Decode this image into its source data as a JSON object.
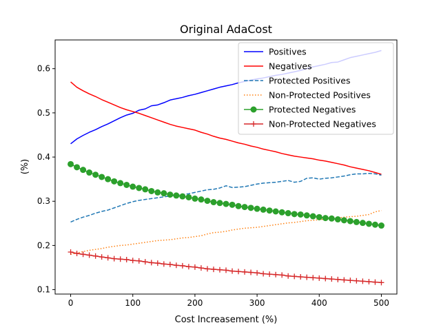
{
  "chart_data": {
    "type": "line",
    "title": "Original AdaCost",
    "xlabel": "Cost Increasement (%)",
    "ylabel": "(%)",
    "xlim": [
      -25,
      525
    ],
    "ylim": [
      0.09,
      0.665
    ],
    "x_ticks": [
      0,
      100,
      200,
      300,
      400,
      500
    ],
    "y_ticks": [
      0.1,
      0.2,
      0.3,
      0.4,
      0.5,
      0.6
    ],
    "x_tick_labels": [
      "0",
      "100",
      "200",
      "300",
      "400",
      "500"
    ],
    "y_tick_labels": [
      "0.1",
      "0.2",
      "0.3",
      "0.4",
      "0.5",
      "0.6"
    ],
    "grid": false,
    "legend_position": "top-right",
    "x": [
      0,
      10,
      20,
      30,
      40,
      50,
      60,
      70,
      80,
      90,
      100,
      110,
      120,
      130,
      140,
      150,
      160,
      170,
      180,
      190,
      200,
      210,
      220,
      230,
      240,
      250,
      260,
      270,
      280,
      290,
      300,
      310,
      320,
      330,
      340,
      350,
      360,
      370,
      380,
      390,
      400,
      410,
      420,
      430,
      440,
      450,
      460,
      470,
      480,
      490,
      500
    ],
    "series": [
      {
        "name": "Positives",
        "color": "#0000ff",
        "style": "solid",
        "marker": "none",
        "values": [
          0.43,
          0.441,
          0.449,
          0.456,
          0.462,
          0.469,
          0.475,
          0.482,
          0.489,
          0.495,
          0.499,
          0.506,
          0.509,
          0.516,
          0.518,
          0.523,
          0.529,
          0.532,
          0.535,
          0.539,
          0.542,
          0.546,
          0.55,
          0.554,
          0.558,
          0.561,
          0.564,
          0.568,
          0.571,
          0.574,
          0.577,
          0.579,
          0.582,
          0.585,
          0.587,
          0.59,
          0.593,
          0.596,
          0.6,
          0.604,
          0.607,
          0.61,
          0.614,
          0.615,
          0.62,
          0.625,
          0.628,
          0.631,
          0.634,
          0.637,
          0.641
        ]
      },
      {
        "name": "Negatives",
        "color": "#ff0000",
        "style": "solid",
        "marker": "none",
        "values": [
          0.57,
          0.558,
          0.55,
          0.543,
          0.537,
          0.53,
          0.524,
          0.518,
          0.512,
          0.507,
          0.503,
          0.499,
          0.494,
          0.489,
          0.484,
          0.479,
          0.474,
          0.47,
          0.467,
          0.464,
          0.461,
          0.456,
          0.452,
          0.447,
          0.443,
          0.44,
          0.436,
          0.432,
          0.429,
          0.425,
          0.422,
          0.418,
          0.415,
          0.412,
          0.408,
          0.405,
          0.402,
          0.4,
          0.398,
          0.396,
          0.393,
          0.391,
          0.388,
          0.385,
          0.382,
          0.378,
          0.375,
          0.372,
          0.369,
          0.365,
          0.361
        ]
      },
      {
        "name": "Protected Positives",
        "color": "#1f77b4",
        "style": "dashed",
        "marker": "none",
        "values": [
          0.253,
          0.259,
          0.264,
          0.268,
          0.273,
          0.277,
          0.28,
          0.285,
          0.29,
          0.295,
          0.299,
          0.302,
          0.304,
          0.306,
          0.308,
          0.31,
          0.312,
          0.314,
          0.315,
          0.317,
          0.32,
          0.323,
          0.326,
          0.327,
          0.33,
          0.335,
          0.331,
          0.332,
          0.333,
          0.336,
          0.339,
          0.341,
          0.342,
          0.343,
          0.345,
          0.347,
          0.343,
          0.345,
          0.352,
          0.353,
          0.35,
          0.352,
          0.353,
          0.355,
          0.357,
          0.36,
          0.362,
          0.362,
          0.363,
          0.362,
          0.359
        ]
      },
      {
        "name": "Non-Protected Positives",
        "color": "#ff7f0e",
        "style": "dotted",
        "marker": "none",
        "values": [
          0.18,
          0.183,
          0.186,
          0.189,
          0.191,
          0.193,
          0.196,
          0.198,
          0.2,
          0.201,
          0.203,
          0.205,
          0.207,
          0.209,
          0.211,
          0.212,
          0.213,
          0.215,
          0.217,
          0.218,
          0.22,
          0.222,
          0.226,
          0.229,
          0.23,
          0.232,
          0.235,
          0.237,
          0.239,
          0.24,
          0.241,
          0.243,
          0.245,
          0.247,
          0.249,
          0.251,
          0.252,
          0.254,
          0.256,
          0.257,
          0.258,
          0.26,
          0.261,
          0.262,
          0.264,
          0.265,
          0.266,
          0.268,
          0.27,
          0.276,
          0.279
        ]
      },
      {
        "name": "Protected Negatives",
        "color": "#2ca02c",
        "style": "solid",
        "marker": "circle",
        "values": [
          0.384,
          0.377,
          0.371,
          0.365,
          0.36,
          0.355,
          0.35,
          0.345,
          0.341,
          0.337,
          0.333,
          0.33,
          0.327,
          0.323,
          0.32,
          0.318,
          0.315,
          0.313,
          0.311,
          0.309,
          0.306,
          0.304,
          0.301,
          0.298,
          0.296,
          0.294,
          0.292,
          0.289,
          0.287,
          0.285,
          0.283,
          0.281,
          0.279,
          0.277,
          0.275,
          0.273,
          0.271,
          0.27,
          0.268,
          0.266,
          0.264,
          0.262,
          0.261,
          0.259,
          0.257,
          0.255,
          0.253,
          0.251,
          0.249,
          0.247,
          0.245
        ]
      },
      {
        "name": "Non-Protected Negatives",
        "color": "#d62728",
        "style": "solid",
        "marker": "plus",
        "values": [
          0.185,
          0.182,
          0.18,
          0.178,
          0.176,
          0.174,
          0.172,
          0.17,
          0.169,
          0.168,
          0.166,
          0.165,
          0.163,
          0.161,
          0.16,
          0.158,
          0.157,
          0.155,
          0.154,
          0.152,
          0.151,
          0.149,
          0.147,
          0.146,
          0.145,
          0.144,
          0.142,
          0.141,
          0.14,
          0.139,
          0.138,
          0.136,
          0.135,
          0.134,
          0.133,
          0.131,
          0.13,
          0.129,
          0.128,
          0.127,
          0.126,
          0.125,
          0.124,
          0.123,
          0.122,
          0.121,
          0.12,
          0.119,
          0.118,
          0.117,
          0.116
        ]
      }
    ]
  }
}
